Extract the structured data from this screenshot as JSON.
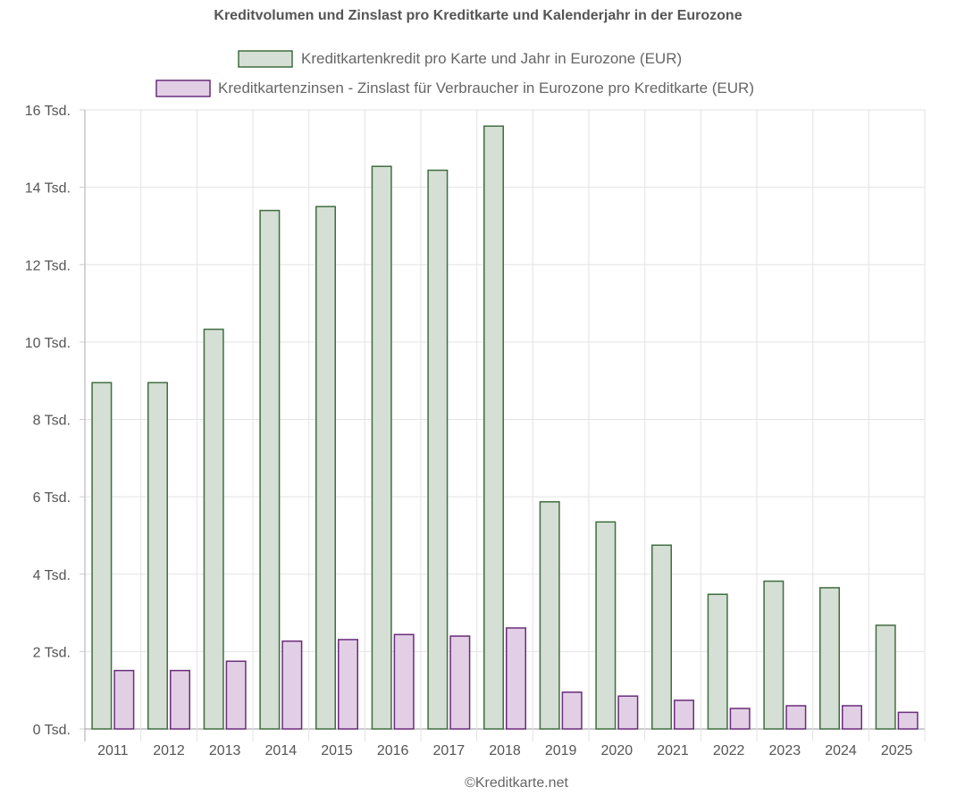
{
  "chart_data": {
    "type": "bar",
    "title": "Kreditvolumen und Zinslast pro Kreditkarte und Kalenderjahr in der Eurozone",
    "categories": [
      "2011",
      "2012",
      "2013",
      "2014",
      "2015",
      "2016",
      "2017",
      "2018",
      "2019",
      "2020",
      "2021",
      "2022",
      "2023",
      "2024",
      "2025"
    ],
    "series": [
      {
        "name": "Kreditkartenkredit pro Karte und Jahr in Eurozone (EUR)",
        "fill": "#d5dfd5",
        "stroke": "#3f6e3f",
        "values": [
          8950,
          8950,
          10330,
          13400,
          13500,
          14540,
          14440,
          15580,
          5870,
          5350,
          4750,
          3480,
          3820,
          3650,
          2680
        ]
      },
      {
        "name": "Kreditkartenzinsen - Zinslast für Verbraucher in Eurozone pro Kreditkarte (EUR)",
        "fill": "#e2cfe6",
        "stroke": "#6a2c7a",
        "values": [
          1510,
          1510,
          1750,
          2270,
          2310,
          2440,
          2400,
          2610,
          950,
          850,
          740,
          530,
          600,
          600,
          430
        ]
      }
    ],
    "ylim": [
      0,
      16000
    ],
    "y_ticks": [
      {
        "value": 0,
        "label": "0 Tsd."
      },
      {
        "value": 2000,
        "label": "2 Tsd."
      },
      {
        "value": 4000,
        "label": "4 Tsd."
      },
      {
        "value": 6000,
        "label": "6 Tsd."
      },
      {
        "value": 8000,
        "label": "8 Tsd."
      },
      {
        "value": 10000,
        "label": "10 Tsd."
      },
      {
        "value": 12000,
        "label": "12 Tsd."
      },
      {
        "value": 14000,
        "label": "14 Tsd."
      },
      {
        "value": 16000,
        "label": "16 Tsd."
      }
    ],
    "xlabel": "",
    "ylabel": "",
    "grid": true,
    "legend_position": "top",
    "footer": "©Kreditkarte.net"
  }
}
